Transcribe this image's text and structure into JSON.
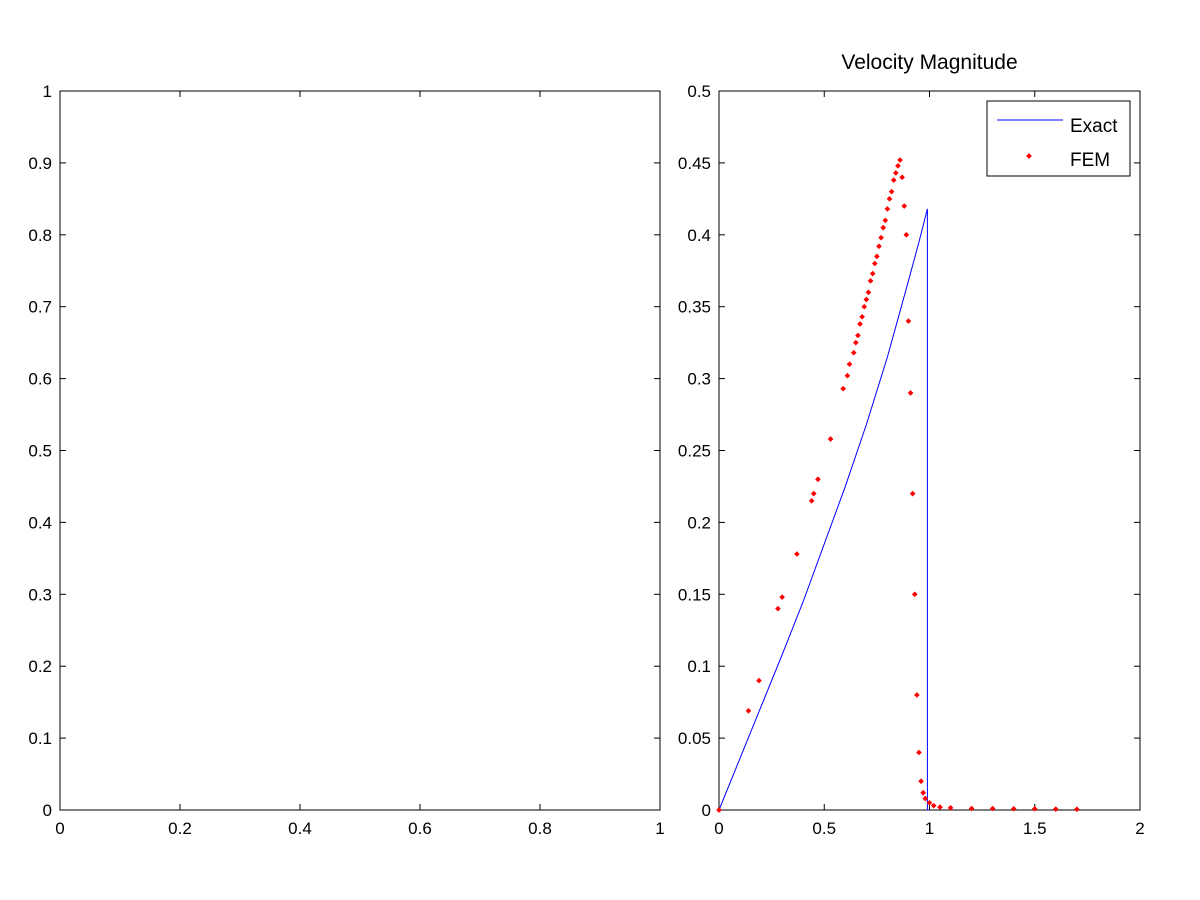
{
  "chart_data": [
    {
      "type": "empty",
      "title": "",
      "xlabel": "",
      "ylabel": "",
      "xlim": [
        0,
        1
      ],
      "ylim": [
        0,
        1
      ],
      "xticks": [
        "0",
        "0.2",
        "0.4",
        "0.6",
        "0.8",
        "1"
      ],
      "yticks": [
        "0",
        "0.1",
        "0.2",
        "0.3",
        "0.4",
        "0.5",
        "0.6",
        "0.7",
        "0.8",
        "0.9",
        "1"
      ]
    },
    {
      "type": "line+scatter",
      "title": "Velocity Magnitude",
      "xlabel": "",
      "ylabel": "",
      "xlim": [
        0,
        2
      ],
      "ylim": [
        0,
        0.5
      ],
      "xticks": [
        "0",
        "0.5",
        "1",
        "1.5",
        "2"
      ],
      "yticks": [
        "0",
        "0.05",
        "0.1",
        "0.15",
        "0.2",
        "0.25",
        "0.3",
        "0.35",
        "0.4",
        "0.45",
        "0.5"
      ],
      "legend": {
        "position": "top-right",
        "entries": [
          "Exact",
          "FEM"
        ]
      },
      "series": [
        {
          "name": "Exact",
          "kind": "line",
          "color": "#0000ff",
          "x": [
            0,
            0.1,
            0.2,
            0.3,
            0.4,
            0.5,
            0.6,
            0.7,
            0.8,
            0.9,
            0.95,
            0.99,
            0.99,
            1.0
          ],
          "y": [
            0,
            0.036,
            0.072,
            0.108,
            0.145,
            0.185,
            0.225,
            0.268,
            0.315,
            0.368,
            0.395,
            0.418,
            0,
            0
          ]
        },
        {
          "name": "FEM",
          "kind": "scatter",
          "color": "#ff0000",
          "x": [
            0,
            0.14,
            0.19,
            0.28,
            0.3,
            0.37,
            0.44,
            0.45,
            0.47,
            0.53,
            0.59,
            0.61,
            0.62,
            0.64,
            0.65,
            0.66,
            0.67,
            0.68,
            0.69,
            0.7,
            0.71,
            0.72,
            0.73,
            0.74,
            0.75,
            0.76,
            0.77,
            0.78,
            0.79,
            0.8,
            0.81,
            0.82,
            0.83,
            0.84,
            0.85,
            0.86,
            0.87,
            0.88,
            0.89,
            0.9,
            0.91,
            0.92,
            0.93,
            0.94,
            0.95,
            0.96,
            0.97,
            0.98,
            1.0,
            1.02,
            1.05,
            1.1,
            1.2,
            1.3,
            1.4,
            1.5,
            1.6,
            1.7
          ],
          "y": [
            0,
            0.069,
            0.09,
            0.14,
            0.148,
            0.178,
            0.215,
            0.22,
            0.23,
            0.258,
            0.293,
            0.302,
            0.31,
            0.318,
            0.325,
            0.33,
            0.338,
            0.343,
            0.35,
            0.355,
            0.36,
            0.368,
            0.373,
            0.38,
            0.385,
            0.392,
            0.398,
            0.405,
            0.41,
            0.418,
            0.425,
            0.43,
            0.438,
            0.443,
            0.448,
            0.452,
            0.44,
            0.42,
            0.4,
            0.34,
            0.29,
            0.22,
            0.15,
            0.08,
            0.04,
            0.02,
            0.012,
            0.008,
            0.005,
            0.003,
            0.002,
            0.0015,
            0.001,
            0.001,
            0.0008,
            0.0008,
            0.0006,
            0.0005
          ]
        }
      ]
    }
  ]
}
